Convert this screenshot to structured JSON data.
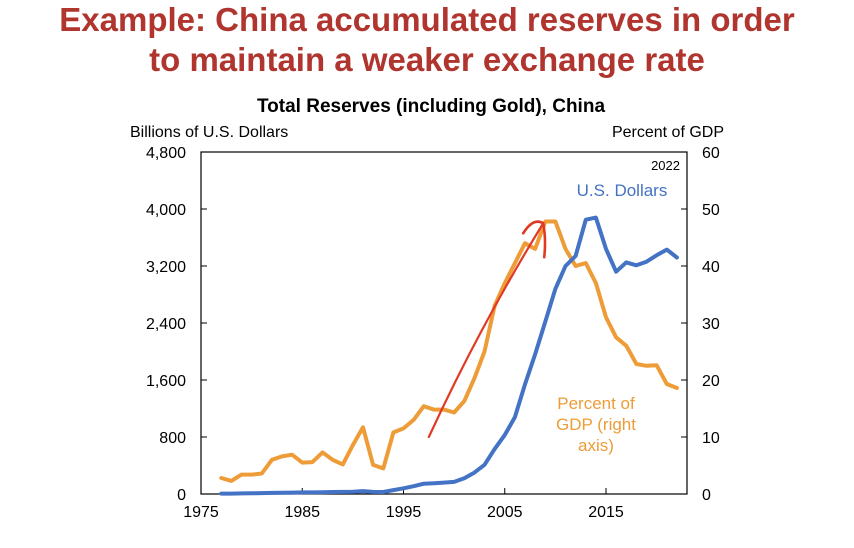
{
  "slide": {
    "headline_line1": "Example: China accumulated reserves in order",
    "headline_line2": "to maintain a weaker exchange rate"
  },
  "chart_data": {
    "type": "line",
    "title": "Total Reserves (including  Gold), China",
    "left_axis_label": "Billions of U.S. Dollars",
    "right_axis_label": "Percent of GDP",
    "year_note": "2022",
    "xlim": [
      1975,
      2023
    ],
    "x_ticks": [
      "1975",
      "1985",
      "1995",
      "2005",
      "2015"
    ],
    "x_tick_values": [
      1975,
      1985,
      1995,
      2005,
      2015
    ],
    "ylim_left": [
      0,
      4800
    ],
    "y_ticks_left": [
      "0",
      "800",
      "1,600",
      "2,400",
      "3,200",
      "4,000",
      "4,800"
    ],
    "y_tick_values_left": [
      0,
      800,
      1600,
      2400,
      3200,
      4000,
      4800
    ],
    "ylim_right": [
      0,
      60
    ],
    "y_ticks_right": [
      "0",
      "10",
      "20",
      "30",
      "40",
      "50",
      "60"
    ],
    "y_tick_values_right": [
      0,
      10,
      20,
      30,
      40,
      50,
      60
    ],
    "grid": false,
    "series": [
      {
        "name": "U.S. Dollars",
        "axis": "left",
        "color": "#4472c4",
        "x": [
          1977,
          1978,
          1979,
          1980,
          1981,
          1982,
          1983,
          1984,
          1985,
          1986,
          1987,
          1988,
          1989,
          1990,
          1991,
          1992,
          1993,
          1994,
          1995,
          1996,
          1997,
          1998,
          1999,
          2000,
          2001,
          2002,
          2003,
          2004,
          2005,
          2006,
          2007,
          2008,
          2009,
          2010,
          2011,
          2012,
          2013,
          2014,
          2015,
          2016,
          2017,
          2018,
          2019,
          2020,
          2021,
          2022
        ],
        "values": [
          5,
          5,
          8,
          10,
          12,
          15,
          18,
          20,
          22,
          22,
          25,
          28,
          30,
          32,
          40,
          30,
          28,
          55,
          80,
          110,
          145,
          150,
          160,
          170,
          220,
          300,
          410,
          630,
          830,
          1080,
          1540,
          1960,
          2420,
          2880,
          3200,
          3340,
          3850,
          3880,
          3440,
          3120,
          3250,
          3210,
          3260,
          3350,
          3430,
          3320
        ]
      },
      {
        "name": "Percent of GDP (right axis)",
        "label_lines": [
          "Percent of",
          "GDP (right",
          "axis)"
        ],
        "axis": "right",
        "color": "#ed9c38",
        "x": [
          1977,
          1978,
          1979,
          1980,
          1981,
          1982,
          1983,
          1984,
          1985,
          1986,
          1987,
          1988,
          1989,
          1990,
          1991,
          1992,
          1993,
          1994,
          1995,
          1996,
          1997,
          1998,
          1999,
          2000,
          2001,
          2002,
          2003,
          2004,
          2005,
          2006,
          2007,
          2008,
          2009,
          2010,
          2011,
          2012,
          2013,
          2014,
          2015,
          2016,
          2017,
          2018,
          2019,
          2020,
          2021,
          2022
        ],
        "values": [
          2.8,
          2.3,
          3.4,
          3.4,
          3.6,
          6.0,
          6.6,
          6.9,
          5.5,
          5.6,
          7.3,
          6.0,
          5.2,
          8.6,
          11.7,
          5.1,
          4.5,
          10.8,
          11.5,
          13.0,
          15.4,
          14.8,
          14.8,
          14.3,
          16.3,
          20.3,
          25.0,
          33.0,
          37.0,
          40.5,
          44.0,
          43.0,
          47.8,
          47.8,
          43.0,
          40.0,
          40.5,
          37.0,
          31.0,
          27.5,
          26.0,
          22.8,
          22.5,
          22.6,
          19.3,
          18.6
        ]
      }
    ],
    "annotation": {
      "type": "hand-drawn-arrow",
      "color": "#e03a25",
      "from": {
        "x": 1997.5,
        "y_right": 10.0
      },
      "to": {
        "x": 2008.8,
        "y_right": 47.5
      }
    }
  }
}
